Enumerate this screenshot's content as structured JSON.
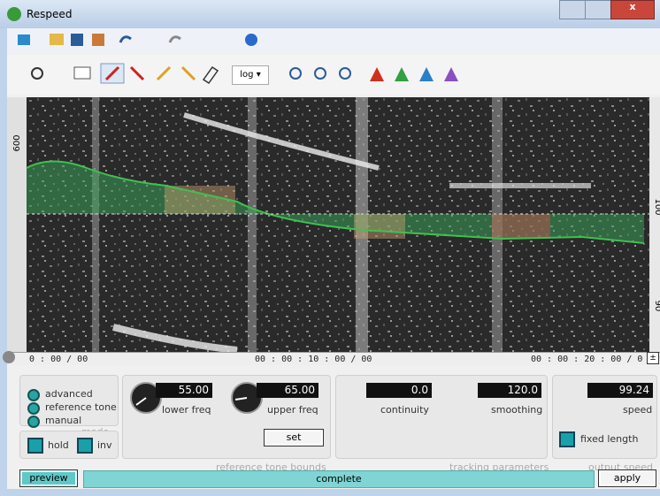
{
  "window": {
    "title": "Respeed"
  },
  "toolbar": {
    "scale": "log"
  },
  "spectrogram": {
    "left_axis": [
      "600"
    ],
    "right_axis": [
      "100",
      "90"
    ],
    "time_labels": [
      "0 : 00 / 00",
      "00 : 00 : 10 : 00 / 00",
      "00 : 00 : 20 : 00 / 0"
    ]
  },
  "mode": {
    "options": [
      "advanced",
      "reference tone",
      "manual"
    ],
    "label": "mode",
    "hold": "hold",
    "inv": "inv"
  },
  "reference_tone_bounds": {
    "lower_value": "55.00",
    "lower_label": "lower freq",
    "upper_value": "65.00",
    "upper_label": "upper freq",
    "set": "set",
    "label": "reference tone bounds"
  },
  "tracking_parameters": {
    "continuity_value": "0.0",
    "continuity_label": "continuity",
    "smoothing_value": "120.0",
    "smoothing_label": "smoothing",
    "label": "tracking parameters"
  },
  "output_speed": {
    "speed_value": "99.24",
    "speed_label": "speed",
    "fixed_length": "fixed length",
    "label": "output speed"
  },
  "status": {
    "preview": "preview",
    "progress": "complete",
    "apply": "apply"
  }
}
